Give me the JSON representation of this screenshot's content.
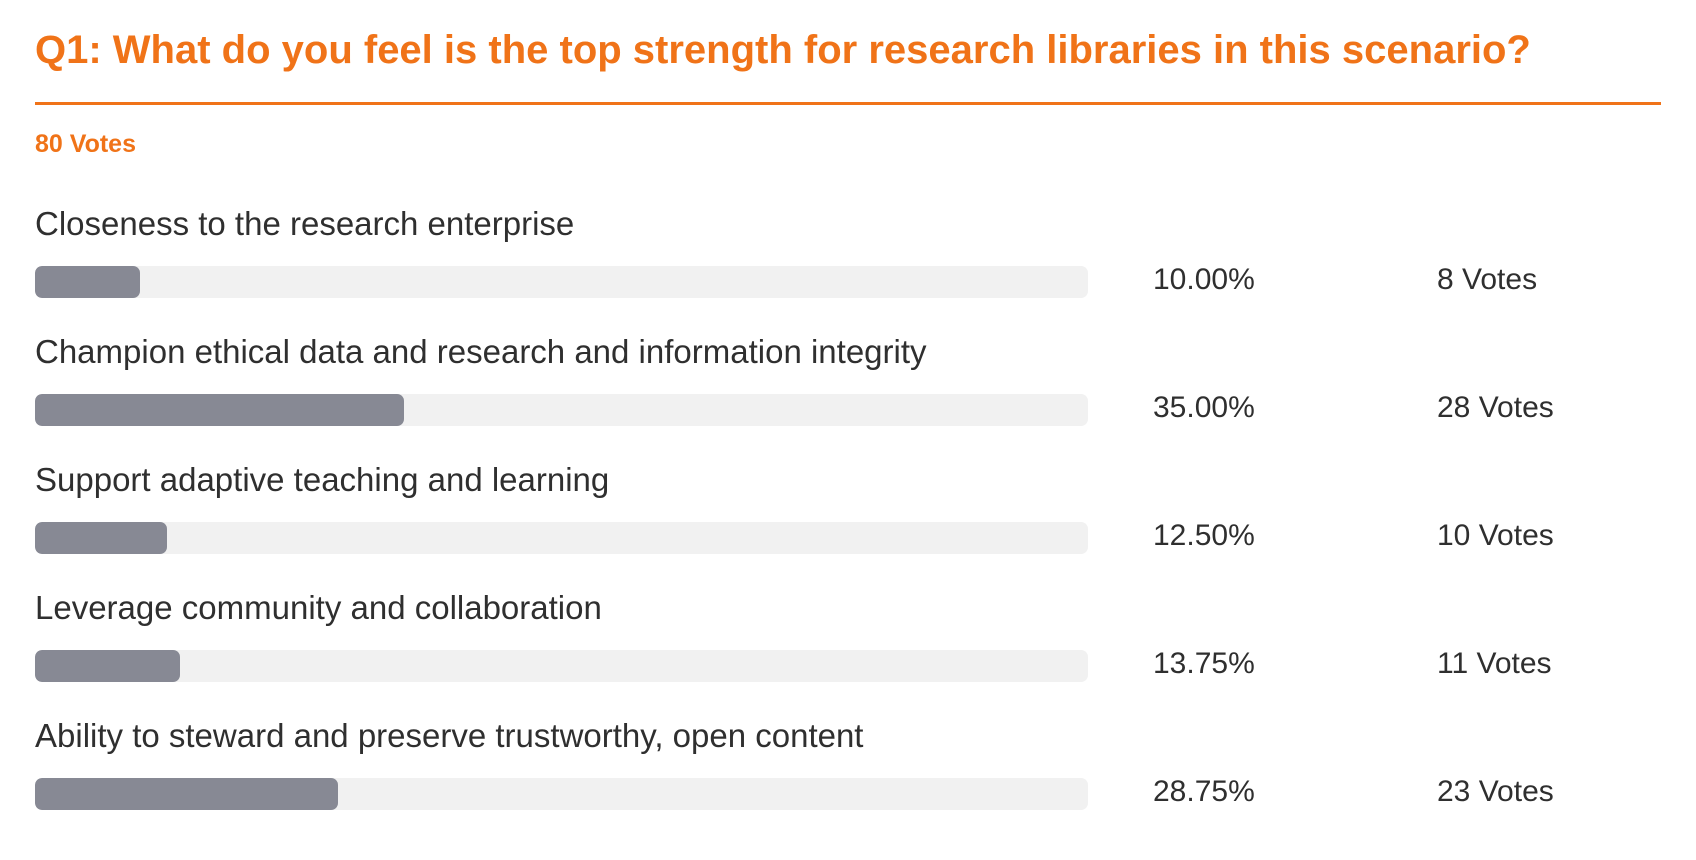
{
  "title": "Q1: What do you feel is the top strength for research libraries in this scenario?",
  "total_votes_label": "80 Votes",
  "colors": {
    "accent": "#f07318",
    "bar_fill": "#878994",
    "bar_track": "#f1f1f1",
    "text": "#2f2f2f"
  },
  "chart_data": {
    "type": "bar",
    "orientation": "horizontal",
    "title": "Q1: What do you feel is the top strength for research libraries in this scenario?",
    "total_votes": 80,
    "categories": [
      "Closeness to the research enterprise",
      "Champion ethical data and research and information integrity",
      "Support adaptive teaching and learning",
      "Leverage community and collaboration",
      "Ability to steward and preserve trustworthy, open content"
    ],
    "values": [
      10.0,
      35.0,
      12.5,
      13.75,
      28.75
    ],
    "percent_labels": [
      "10.00%",
      "35.00%",
      "12.50%",
      "13.75%",
      "28.75%"
    ],
    "votes": [
      8,
      28,
      10,
      11,
      23
    ],
    "vote_labels": [
      "8 Votes",
      "28 Votes",
      "10 Votes",
      "11 Votes",
      "23 Votes"
    ],
    "xlim": [
      0,
      100
    ]
  }
}
